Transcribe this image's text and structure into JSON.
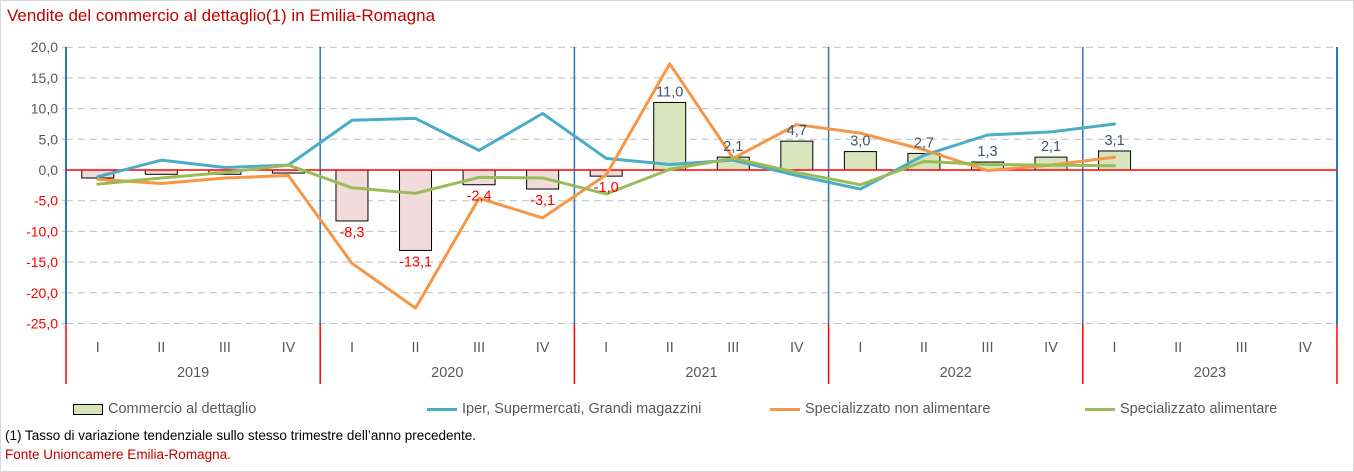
{
  "title": "Vendite del commercio al dettaglio(1) in Emilia-Romagna",
  "footnote": "(1) Tasso di variazione tendenziale sullo stesso trimestre dell’anno precedente.",
  "source": "Fonte Unioncamere Emilia-Romagna.",
  "colors": {
    "title": "#C00000",
    "source": "#C00000",
    "footnote": "#000000",
    "legend_text": "#595959",
    "grid": "#BFBFBF",
    "zero_line": "#FF0000",
    "axis_separator_blue": "#2E75B6",
    "axis_separator_red": "#FF0000",
    "axis_text": "#595959",
    "tick_label_negative": "#FF0000",
    "bar_label_positive": "#44546A",
    "bar_label_negative": "#FF0000"
  },
  "chart_data": {
    "type": "bar+line",
    "title": "Vendite del commercio al dettaglio(1) in Emilia-Romagna",
    "years": [
      "2019",
      "2020",
      "2021",
      "2022",
      "2023"
    ],
    "quarters": [
      "I",
      "II",
      "III",
      "IV"
    ],
    "ylim": [
      -25,
      20
    ],
    "grid": "dashed horizontal",
    "legend_position": "bottom",
    "yticks": [
      {
        "value": 20,
        "label": "20,0"
      },
      {
        "value": 15,
        "label": "15,0"
      },
      {
        "value": 10,
        "label": "10,0"
      },
      {
        "value": 5,
        "label": "5,0"
      },
      {
        "value": 0,
        "label": "0,0"
      },
      {
        "value": -5,
        "label": "-5,0"
      },
      {
        "value": -10,
        "label": "-10,0"
      },
      {
        "value": -15,
        "label": "-15,0"
      },
      {
        "value": -20,
        "label": "-20,0"
      },
      {
        "value": -25,
        "label": "-25,0"
      }
    ],
    "series": [
      {
        "name": "Commercio al dettaglio",
        "type": "bar",
        "color_positive": "#D8E4BC",
        "color_negative": "#F2DCDB",
        "border_color": "#000000",
        "values": [
          -1.3,
          -0.7,
          -0.7,
          -0.5,
          -8.3,
          -13.1,
          -2.4,
          -3.1,
          -1.0,
          11.0,
          2.1,
          4.7,
          3.0,
          2.7,
          1.3,
          2.1,
          3.1,
          null,
          null,
          null
        ],
        "value_labels": [
          "",
          "",
          "",
          "",
          "-8,3",
          "-13,1",
          "-2,4",
          "-3,1",
          "-1,0",
          "11,0",
          "2,1",
          "4,7",
          "3,0",
          "2,7",
          "1,3",
          "2,1",
          "3,1",
          "",
          "",
          ""
        ]
      },
      {
        "name": "Iper, Supermercati, Grandi magazzini",
        "type": "line",
        "color": "#4BACC6",
        "values": [
          -1.1,
          1.6,
          0.4,
          0.8,
          8.1,
          8.4,
          3.2,
          9.2,
          1.9,
          0.9,
          1.6,
          -0.9,
          -3.1,
          2.4,
          5.7,
          6.2,
          7.5,
          null,
          null,
          null
        ]
      },
      {
        "name": "Specializzato non alimentare",
        "type": "line",
        "color": "#F79646",
        "values": [
          -1.5,
          -2.2,
          -1.3,
          -0.9,
          -15.2,
          -22.5,
          -4.6,
          -7.8,
          -0.8,
          17.3,
          1.9,
          7.4,
          6.0,
          3.3,
          -0.1,
          0.8,
          2.1,
          null,
          null,
          null
        ]
      },
      {
        "name": "Specializzato alimentare",
        "type": "line",
        "color": "#9BBB59",
        "values": [
          -2.3,
          -1.3,
          -0.4,
          0.8,
          -2.9,
          -3.8,
          -1.2,
          -1.3,
          -3.9,
          0.1,
          1.9,
          -0.4,
          -2.4,
          1.4,
          0.9,
          0.8,
          0.7,
          null,
          null,
          null
        ]
      }
    ]
  }
}
